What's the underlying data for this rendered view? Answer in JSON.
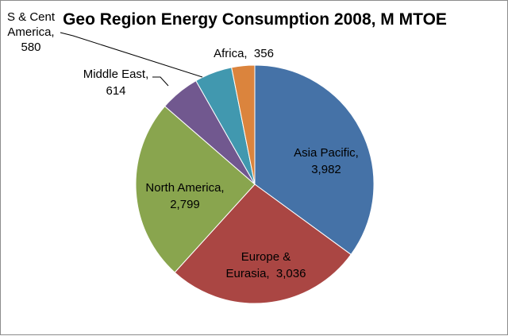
{
  "chart_data": {
    "type": "pie",
    "title": "Geo Region Energy Consumption 2008, M MTOE",
    "slices": [
      {
        "name": "Asia Pacific",
        "value": 3982,
        "value_label": "3,982",
        "color": "#4572A7"
      },
      {
        "name": "Europe & Eurasia",
        "value": 3036,
        "value_label": "3,036",
        "color": "#AA4643"
      },
      {
        "name": "North America",
        "value": 2799,
        "value_label": "2,799",
        "color": "#89A54E"
      },
      {
        "name": "Middle East",
        "value": 614,
        "value_label": "614",
        "color": "#71588F"
      },
      {
        "name": "S & Cent America",
        "value": 580,
        "value_label": "580",
        "color": "#4198AF"
      },
      {
        "name": "Africa",
        "value": 356,
        "value_label": "356",
        "color": "#DB843D"
      }
    ],
    "label_lines": [
      [
        "Asia Pacific,",
        "3,982"
      ],
      [
        "Europe &",
        "Eurasia,  3,036"
      ],
      [
        "North America,",
        "2,799"
      ],
      [
        "Middle East,",
        "614"
      ],
      [
        "S & Cent",
        "America,",
        "580"
      ],
      [
        "Africa,  356"
      ]
    ],
    "legend": "none",
    "start_angle": "12 o'clock",
    "direction": "clockwise"
  }
}
